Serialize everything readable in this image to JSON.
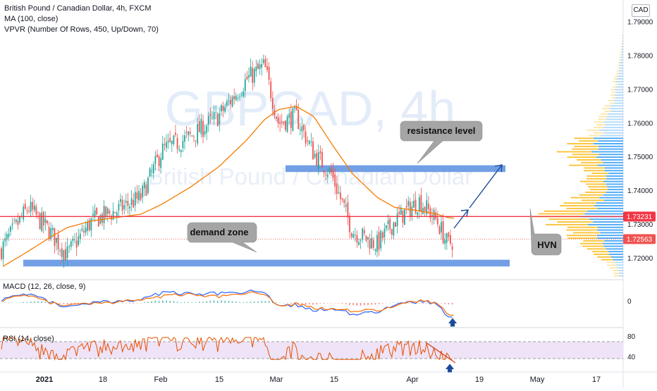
{
  "legend": {
    "symbol": "British Pound / Canadian Dollar, 4h, FXCM",
    "ma": "MA (100, close)",
    "vpvr": "VPVR (Number Of Rows, 450, Up/Down, 70)",
    "currency": "CAD"
  },
  "watermark": {
    "symbol": "GBPCAD, 4h",
    "name": "British Pound / Canadian Dollar"
  },
  "annotations": {
    "resistance": "resistance level",
    "demand": "demand zone",
    "hvn": "HVN"
  },
  "price_badges": {
    "hvn_level": "1.73231",
    "last_price": "1.72563"
  },
  "macd": {
    "legend": "MACD (12, 26, close, 9)",
    "axis_label": "0"
  },
  "rsi": {
    "legend": "RSI (14, close)",
    "axis_labels": [
      "80",
      "40"
    ]
  },
  "colors": {
    "up": "#26a69a",
    "down": "#ef5350",
    "ma": "#f57c00",
    "zone": "#5b8fe0",
    "hvn_line": "#f23645",
    "vp_up": "#fbc02d",
    "vp_down": "#42a5f5",
    "macd_line": "#2962ff",
    "signal_line": "#ff6d00",
    "rsi_line": "#e65100",
    "rsi_band": "#efe3f7"
  },
  "chart_data": {
    "type": "candlestick",
    "price_axis": {
      "range": [
        1.714,
        1.7965
      ],
      "ticks": [
        "1.79000",
        "1.78000",
        "1.77000",
        "1.76000",
        "1.75000",
        "1.74000",
        "1.73000",
        "1.72000"
      ]
    },
    "time_axis": {
      "labels": [
        "2021",
        "18",
        "Feb",
        "15",
        "Mar",
        "15",
        "Apr",
        "19",
        "May",
        "17"
      ]
    },
    "price_path": {
      "dates": [
        "Jan 4",
        "Jan 8",
        "Jan 12",
        "Jan 14",
        "Jan 20",
        "Jan 25",
        "Jan 29",
        "Feb 2",
        "Feb 9",
        "Feb 15",
        "Feb 20",
        "Feb 24",
        "Mar 1",
        "Mar 4",
        "Mar 9",
        "Mar 15",
        "Mar 19",
        "Mar 25",
        "Mar 30",
        "Apr 3",
        "Apr 7",
        "Apr 9",
        "Apr 12"
      ],
      "close": [
        1.722,
        1.735,
        1.728,
        1.721,
        1.731,
        1.734,
        1.738,
        1.752,
        1.756,
        1.762,
        1.773,
        1.777,
        1.76,
        1.762,
        1.751,
        1.745,
        1.728,
        1.724,
        1.731,
        1.737,
        1.731,
        1.724,
        1.7256
      ]
    },
    "ma100": [
      1.717,
      1.722,
      1.726,
      1.729,
      1.731,
      1.732,
      1.733,
      1.736,
      1.741,
      1.747,
      1.755,
      1.761,
      1.764,
      1.765,
      1.762,
      1.754,
      1.745,
      1.738,
      1.735,
      1.734,
      1.733,
      1.732,
      1.7318
    ],
    "levels": {
      "hvn": 1.73231,
      "last": 1.72563,
      "resistance_zone": [
        1.7455,
        1.7475
      ],
      "demand_zone": [
        1.7175,
        1.7195
      ]
    },
    "volume_profile": {
      "price": [
        1.716,
        1.72,
        1.724,
        1.728,
        1.7323,
        1.736,
        1.74,
        1.744,
        1.748,
        1.752,
        1.756,
        1.76,
        1.764,
        1.768,
        1.772,
        1.776,
        1.78,
        1.784
      ],
      "up": [
        8,
        20,
        35,
        52,
        75,
        48,
        36,
        30,
        42,
        50,
        22,
        14,
        10,
        7,
        5,
        3,
        2,
        1
      ],
      "down": [
        6,
        18,
        32,
        44,
        62,
        40,
        30,
        26,
        38,
        46,
        40,
        28,
        20,
        14,
        10,
        6,
        3,
        1
      ]
    },
    "rsi_levels": [
      70,
      30
    ]
  }
}
